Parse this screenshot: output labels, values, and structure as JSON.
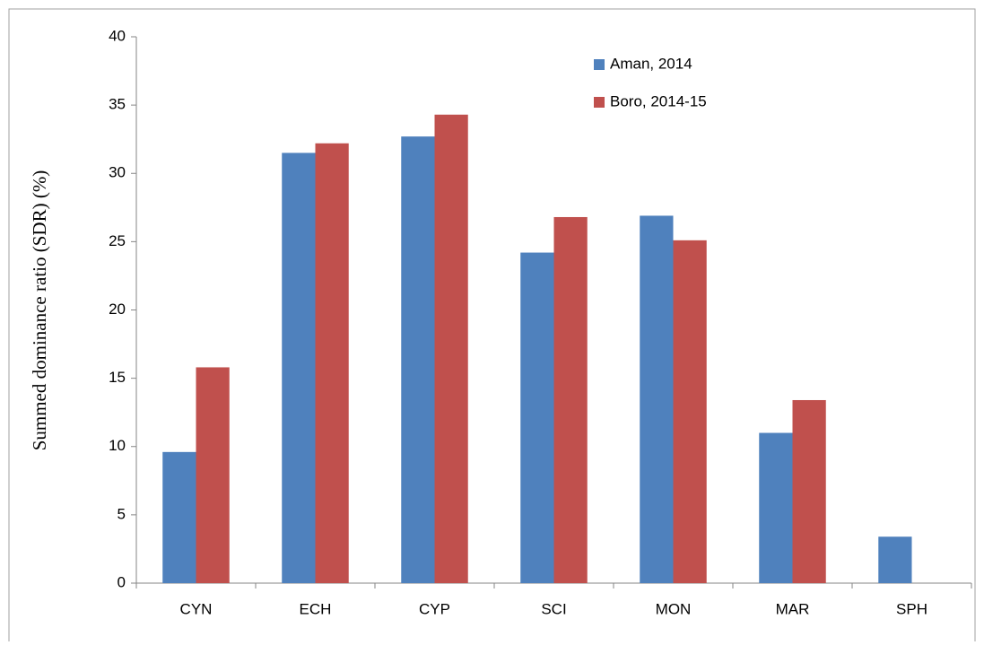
{
  "chart_data": {
    "type": "bar",
    "y_label": "Summed dominance ratio (SDR) (%)",
    "categories": [
      "CYN",
      "ECH",
      "CYP",
      "SCI",
      "MON",
      "MAR",
      "SPH"
    ],
    "series": [
      {
        "name": "Aman, 2014",
        "color": "#4f81bd",
        "values": [
          9.6,
          31.5,
          32.7,
          24.2,
          26.9,
          11.0,
          3.4
        ]
      },
      {
        "name": "Boro, 2014-15",
        "color": "#c0504d",
        "values": [
          15.8,
          32.2,
          34.3,
          26.8,
          25.1,
          13.4,
          0
        ]
      }
    ],
    "ylim": [
      0,
      40
    ],
    "yticks": [
      0,
      5,
      10,
      15,
      20,
      25,
      30,
      35,
      40
    ],
    "grid": false,
    "legend": "top-right"
  }
}
